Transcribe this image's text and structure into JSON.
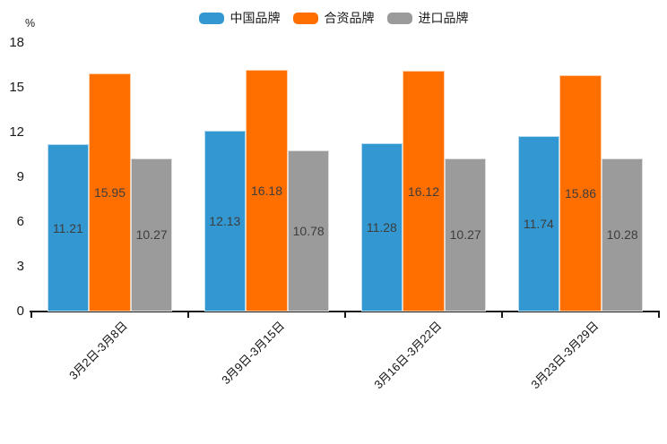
{
  "chart_data": {
    "type": "bar",
    "title": "",
    "unit_label": "%",
    "categories": [
      "3月2日-3月8日",
      "3月9日-3月15日",
      "3月16日-3月22日",
      "3月23日-3月29日"
    ],
    "series": [
      {
        "name": "中国品牌",
        "color": "#3398D1",
        "values": [
          11.21,
          12.13,
          11.28,
          11.74
        ]
      },
      {
        "name": "合资品牌",
        "color": "#FF6F00",
        "values": [
          15.95,
          16.18,
          16.12,
          15.86
        ]
      },
      {
        "name": "进口品牌",
        "color": "#9B9B9B",
        "values": [
          10.27,
          10.78,
          10.27,
          10.28
        ]
      }
    ],
    "ylim": [
      0,
      18
    ],
    "yticks": [
      0,
      3,
      6,
      9,
      12,
      15,
      18
    ],
    "grid": false,
    "legend_position": "top",
    "value_labels_shown": true,
    "axis_color": "#1A1A1A",
    "value_label_color": "#3D3D3D"
  }
}
